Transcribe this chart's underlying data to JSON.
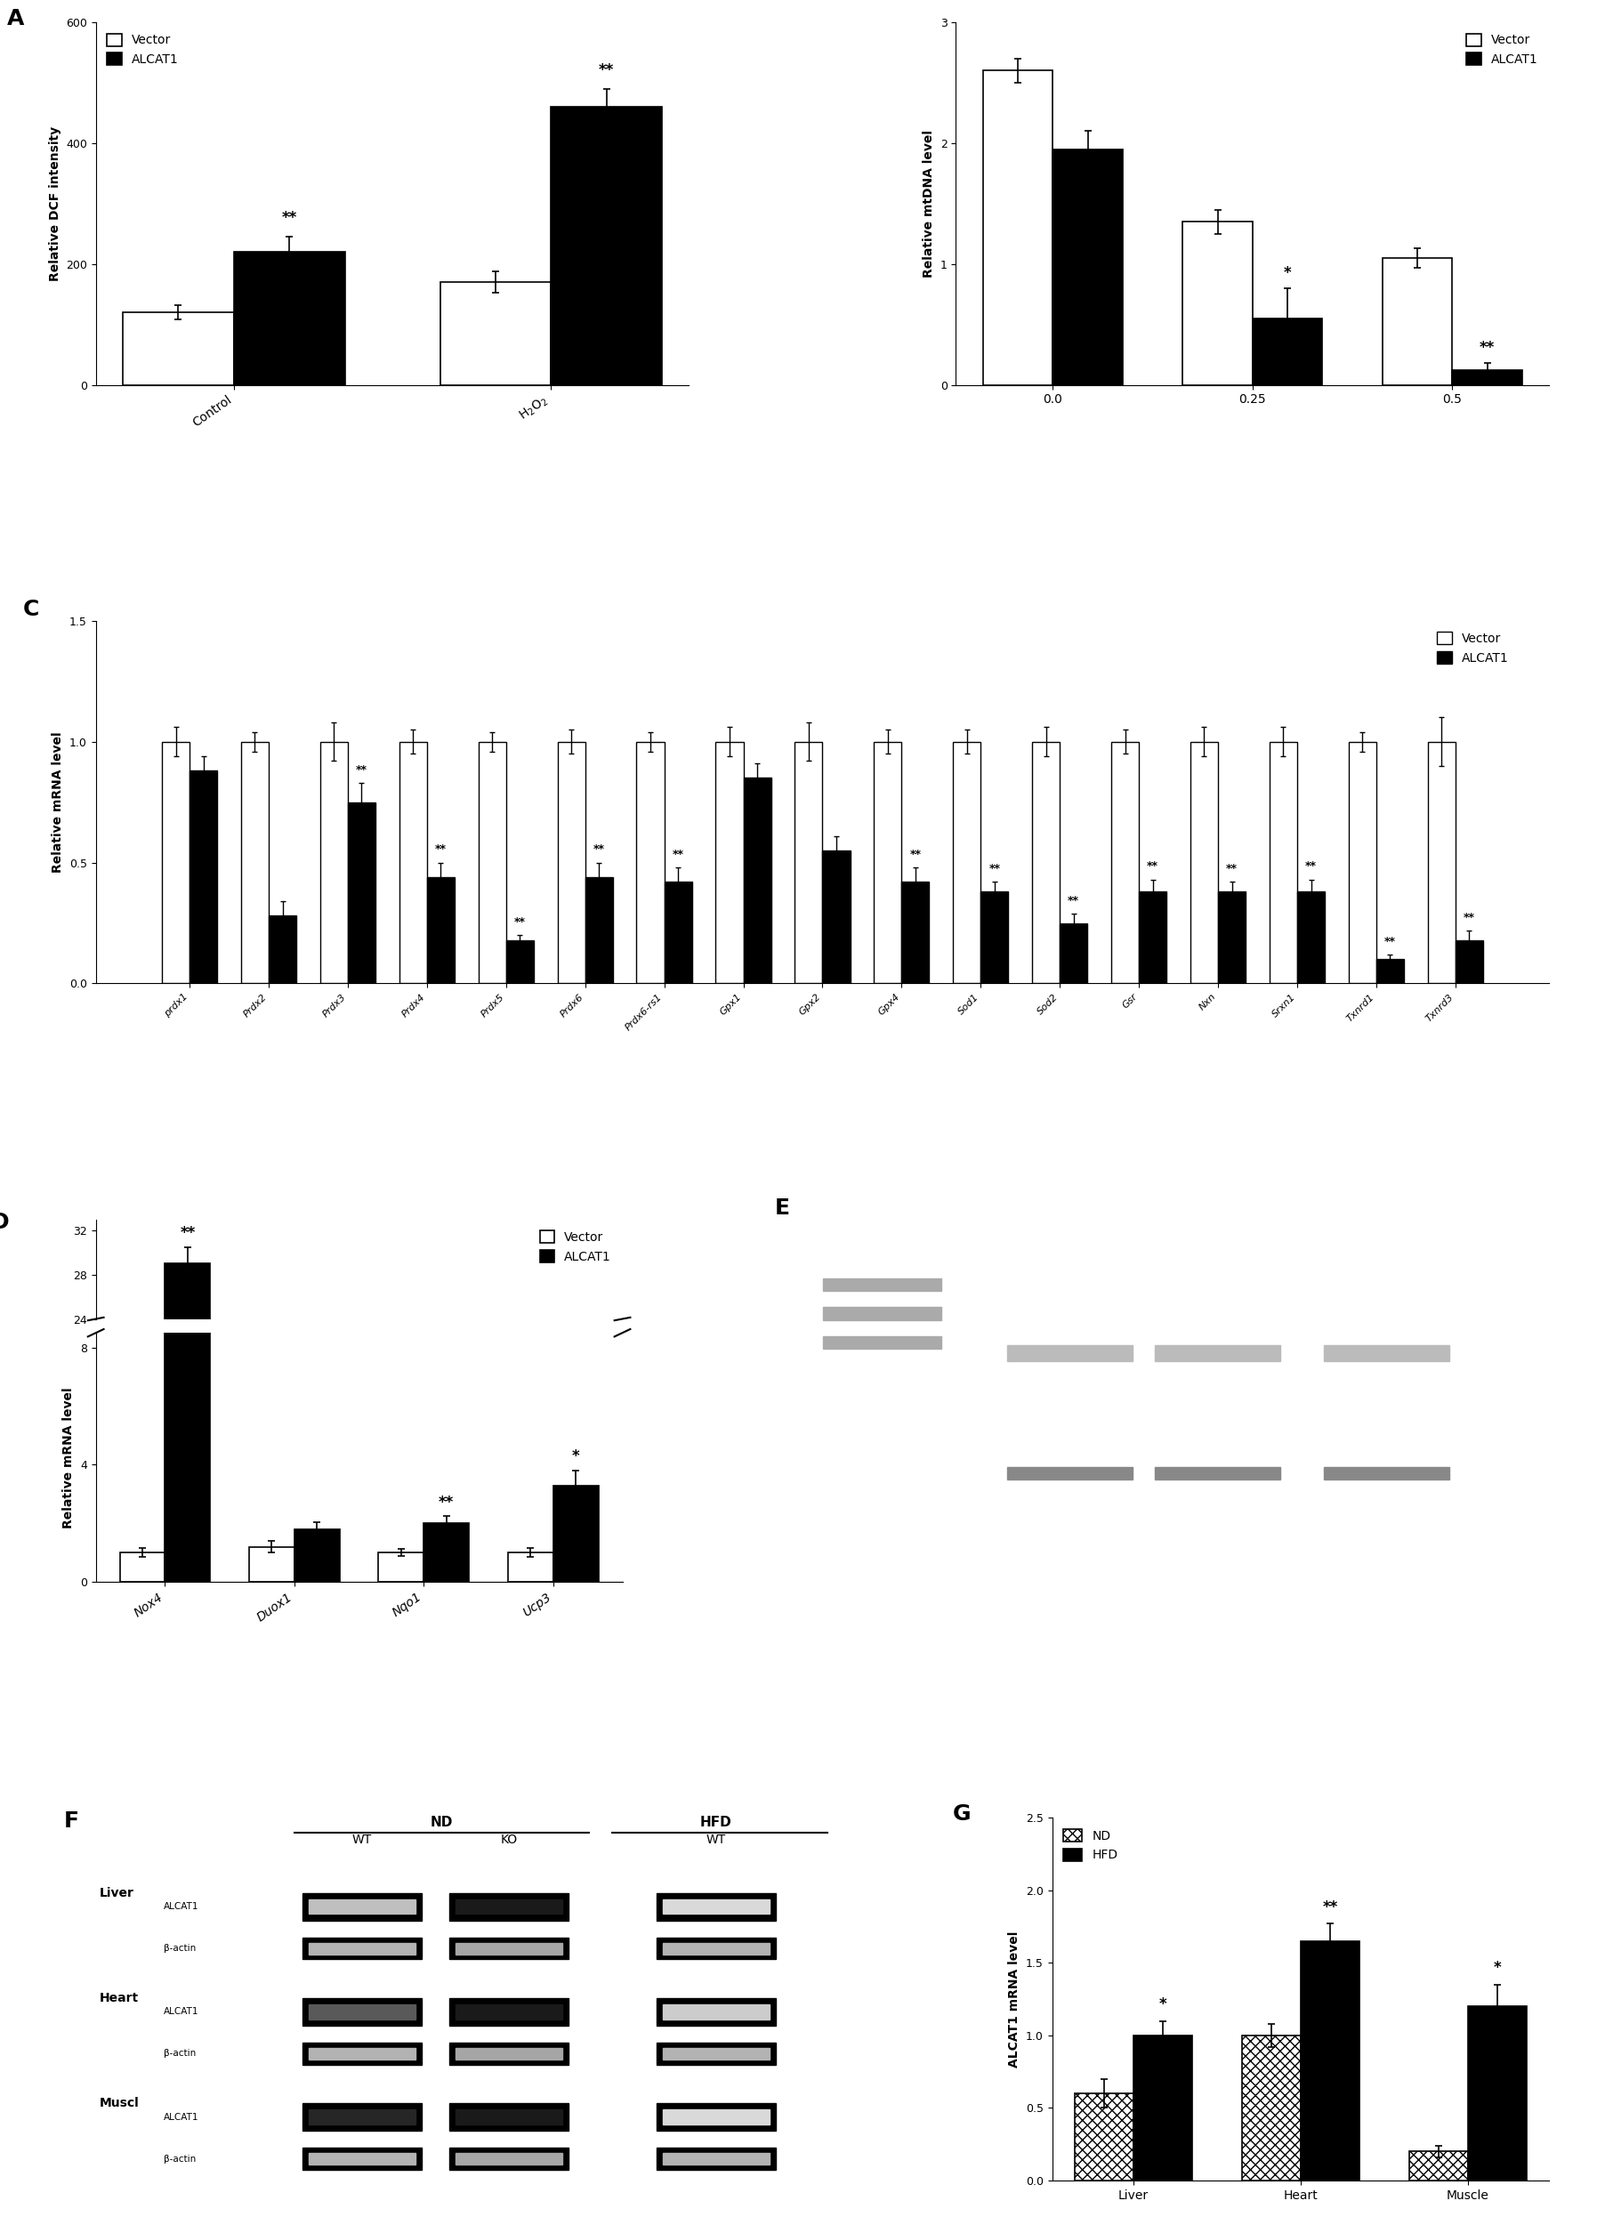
{
  "panel_A": {
    "categories": [
      "Control",
      "H$_2$O$_2$"
    ],
    "vector_values": [
      120,
      170
    ],
    "alcat1_values": [
      220,
      460
    ],
    "vector_errors": [
      12,
      18
    ],
    "alcat1_errors": [
      25,
      30
    ],
    "ylabel": "Relative DCF intensity",
    "ylim": [
      0,
      600
    ],
    "yticks": [
      0,
      200,
      400,
      600
    ],
    "significance_alcat1": [
      "**",
      "**"
    ]
  },
  "panel_B": {
    "categories": [
      "0.0",
      "0.25",
      "0.5"
    ],
    "vector_values": [
      2.6,
      1.35,
      1.05
    ],
    "alcat1_values": [
      1.95,
      0.55,
      0.12
    ],
    "vector_errors": [
      0.1,
      0.1,
      0.08
    ],
    "alcat1_errors": [
      0.15,
      0.25,
      0.06
    ],
    "ylabel": "Relative mtDNA level",
    "ylim": [
      0,
      3
    ],
    "yticks": [
      0,
      1,
      2,
      3
    ],
    "significance_alcat1": [
      "",
      "*",
      "**"
    ]
  },
  "panel_C": {
    "categories": [
      "prdx1",
      "Prdx2",
      "Prdx3",
      "Prdx4",
      "Prdx5",
      "Prdx6",
      "Prdx6-rs1",
      "Gpx1",
      "Gpx2",
      "Gpx4",
      "Sod1",
      "Sod2",
      "Gsr",
      "Nxn",
      "Srxn1",
      "Txnrd1",
      "Txnrd3"
    ],
    "vector_values": [
      1.0,
      1.0,
      1.0,
      1.0,
      1.0,
      1.0,
      1.0,
      1.0,
      1.0,
      1.0,
      1.0,
      1.0,
      1.0,
      1.0,
      1.0,
      1.0,
      1.0
    ],
    "alcat1_values": [
      0.88,
      0.28,
      0.75,
      0.44,
      0.18,
      0.44,
      0.42,
      0.85,
      0.55,
      0.42,
      0.38,
      0.25,
      0.38,
      0.38,
      0.38,
      0.1,
      0.18
    ],
    "vector_errors": [
      0.06,
      0.04,
      0.08,
      0.05,
      0.04,
      0.05,
      0.04,
      0.06,
      0.08,
      0.05,
      0.05,
      0.06,
      0.05,
      0.06,
      0.06,
      0.04,
      0.1
    ],
    "alcat1_errors": [
      0.06,
      0.06,
      0.08,
      0.06,
      0.02,
      0.06,
      0.06,
      0.06,
      0.06,
      0.06,
      0.04,
      0.04,
      0.05,
      0.04,
      0.05,
      0.02,
      0.04
    ],
    "ylabel": "Relative mRNA level",
    "ylim": [
      0,
      1.5
    ],
    "yticks": [
      0.0,
      0.5,
      1.0,
      1.5
    ],
    "significance_alcat1": [
      "",
      "",
      "**",
      "**",
      "**",
      "**",
      "**",
      "",
      "",
      "**",
      "**",
      "**",
      "**",
      "**",
      "**",
      "**",
      "**"
    ]
  },
  "panel_D": {
    "categories": [
      "Nox4",
      "Duox1",
      "Nqo1",
      "Ucp3"
    ],
    "vector_values": [
      1.0,
      1.2,
      1.0,
      1.0
    ],
    "alcat1_values": [
      29.0,
      1.8,
      2.0,
      3.3
    ],
    "vector_errors": [
      0.15,
      0.2,
      0.12,
      0.15
    ],
    "alcat1_errors": [
      1.5,
      0.25,
      0.25,
      0.5
    ],
    "ylabel": "Relative mRNA level",
    "ylim_low": [
      0,
      8
    ],
    "ylim_high": [
      24,
      32
    ],
    "yticks_low": [
      0,
      4,
      8
    ],
    "yticks_high": [
      24,
      28,
      32
    ],
    "significance_alcat1": [
      "**",
      "",
      "**",
      "*"
    ]
  },
  "panel_G": {
    "categories": [
      "Liver",
      "Heart",
      "Muscle"
    ],
    "nd_values": [
      0.6,
      1.0,
      0.2
    ],
    "hfd_values": [
      1.0,
      1.65,
      1.2
    ],
    "nd_errors": [
      0.1,
      0.08,
      0.04
    ],
    "hfd_errors": [
      0.1,
      0.12,
      0.15
    ],
    "ylabel": "ALCAT1 mRNA level",
    "ylim": [
      0,
      2.5
    ],
    "yticks": [
      0.0,
      0.5,
      1.0,
      1.5,
      2.0,
      2.5
    ],
    "significance_hfd": [
      "*",
      "**",
      "*"
    ]
  }
}
